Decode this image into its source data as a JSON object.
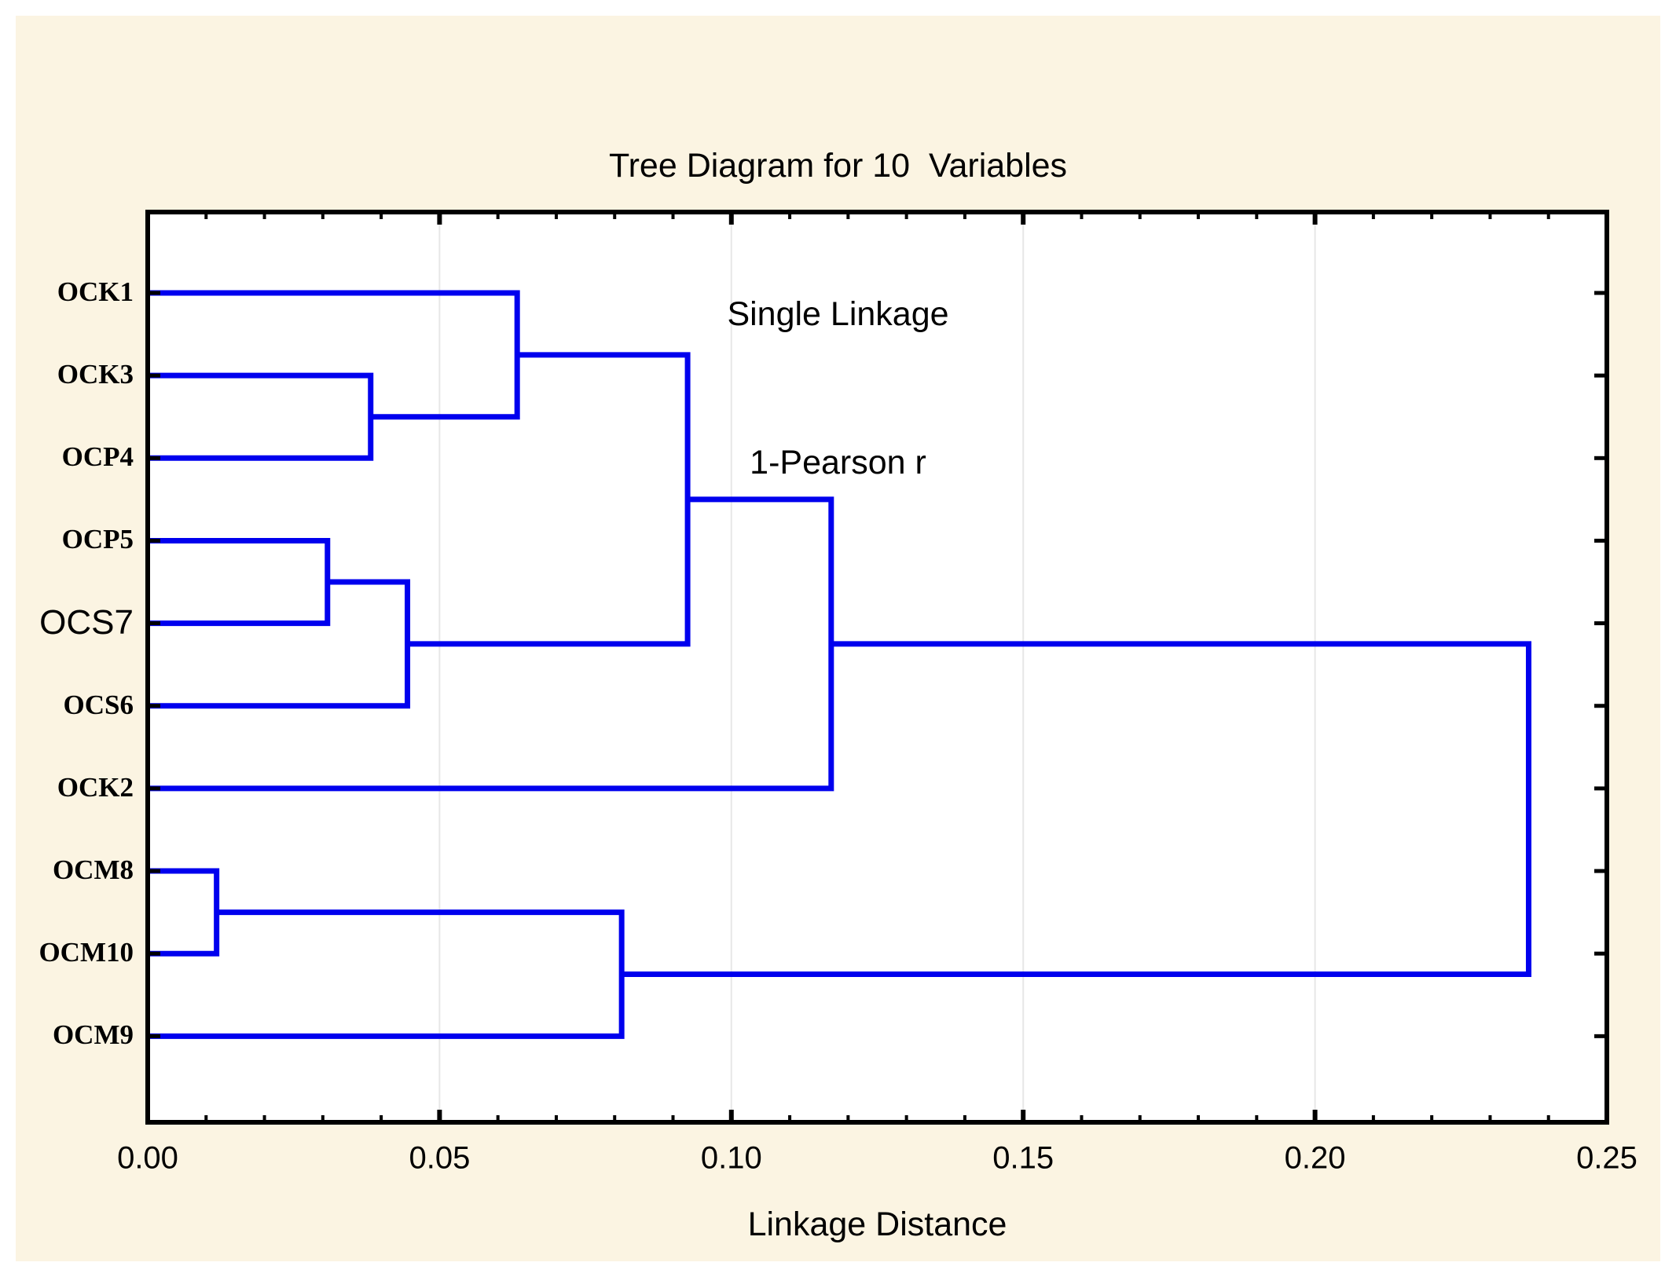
{
  "header": {
    "title": "Tree Diagram for 10  Variables",
    "subtitle_linkage": "Single Linkage",
    "subtitle_metric": "1-Pearson r"
  },
  "axis": {
    "label": "Linkage Distance",
    "tick_labels": [
      "0.00",
      "0.05",
      "0.10",
      "0.15",
      "0.20",
      "0.25"
    ],
    "min": 0,
    "max": 0.25,
    "major_step": 0.05,
    "minor_step": 0.01
  },
  "chart_data": {
    "type": "dendrogram",
    "orientation": "horizontal, leaves at left, root at right",
    "title": "Tree Diagram for 10  Variables",
    "method": "Single Linkage",
    "distance_metric": "1-Pearson r",
    "xlabel": "Linkage Distance",
    "xlim": [
      0,
      0.25
    ],
    "grid": "vertical gridlines at major ticks",
    "legend": "none",
    "leaves": [
      "OCK1",
      "OCK3",
      "OCP4",
      "OCP5",
      "OCS7",
      "OCS6",
      "OCK2",
      "OCM8",
      "OCM10",
      "OCM9"
    ],
    "emphasized_leaf": "OCS7",
    "merges": [
      {
        "id": "m1",
        "children": [
          "OCM8",
          "OCM10"
        ],
        "distance": 0.0118
      },
      {
        "id": "m2",
        "children": [
          "OCP5",
          "OCS7"
        ],
        "distance": 0.0308
      },
      {
        "id": "m3",
        "children": [
          "OCK3",
          "OCP4"
        ],
        "distance": 0.0382
      },
      {
        "id": "m4",
        "children": [
          "m2",
          "OCS6"
        ],
        "distance": 0.0445
      },
      {
        "id": "m5",
        "children": [
          "OCK1",
          "m3"
        ],
        "distance": 0.0633
      },
      {
        "id": "m6",
        "children": [
          "m1",
          "OCM9"
        ],
        "distance": 0.0812
      },
      {
        "id": "m7",
        "children": [
          "m5",
          "m4"
        ],
        "distance": 0.0925
      },
      {
        "id": "m8",
        "children": [
          "m7",
          "OCK2"
        ],
        "distance": 0.1171
      },
      {
        "id": "m9",
        "children": [
          "m8",
          "m6"
        ],
        "distance": 0.2366
      }
    ]
  },
  "colors": {
    "line": "#0000EE",
    "background": "#FBF4E2",
    "plot_background": "#FFFFFF",
    "grid": "#E7E7E7",
    "axis": "#000000"
  }
}
